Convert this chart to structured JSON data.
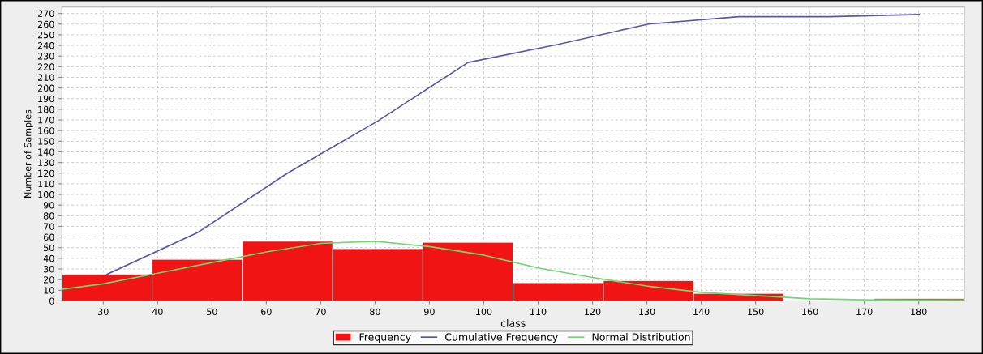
{
  "chart_data": {
    "type": "histogram",
    "xlabel": "class",
    "ylabel": "Number of Samples",
    "series": [
      {
        "name": "Frequency",
        "color": "#f01414",
        "bins": [
          22.4,
          39,
          55.6,
          72.2,
          88.8,
          105.4,
          122,
          138.6,
          155.2,
          171.8,
          188.4
        ],
        "values": [
          25,
          39,
          56,
          49,
          55,
          17,
          19,
          7,
          0,
          2
        ]
      },
      {
        "name": "Cumulative Frequency",
        "type": "line",
        "color": "#5a55a8",
        "x": [
          30.7,
          47.3,
          63.9,
          80.5,
          97.1,
          113.7,
          130.3,
          146.9,
          163.5,
          180.1
        ],
        "values": [
          25,
          64,
          120,
          169,
          224,
          241,
          260,
          267,
          267,
          269
        ]
      },
      {
        "name": "Normal Distribution",
        "type": "line",
        "color": "#6fd96f",
        "x": [
          22.4,
          30,
          40,
          50,
          60,
          70,
          80,
          90,
          100,
          105,
          110,
          120,
          130,
          140,
          150,
          160,
          170,
          180,
          188.4
        ],
        "values": [
          11,
          16,
          26,
          36,
          46,
          54,
          56,
          51,
          43,
          37,
          31,
          22,
          14,
          8,
          5,
          2,
          1,
          0.5,
          0.3
        ]
      }
    ],
    "xlim": [
      22.4,
      188.4
    ],
    "xticks": [
      30,
      40,
      50,
      60,
      70,
      80,
      90,
      100,
      110,
      120,
      130,
      140,
      150,
      160,
      170,
      180
    ],
    "ylim": [
      0,
      276
    ],
    "yticks": [
      0,
      10,
      20,
      30,
      40,
      50,
      60,
      70,
      80,
      90,
      100,
      110,
      120,
      130,
      140,
      150,
      160,
      170,
      180,
      190,
      200,
      210,
      220,
      230,
      240,
      250,
      260,
      270
    ],
    "grid": true,
    "legend": "bottom",
    "line_style": "solid",
    "marker": "none"
  }
}
